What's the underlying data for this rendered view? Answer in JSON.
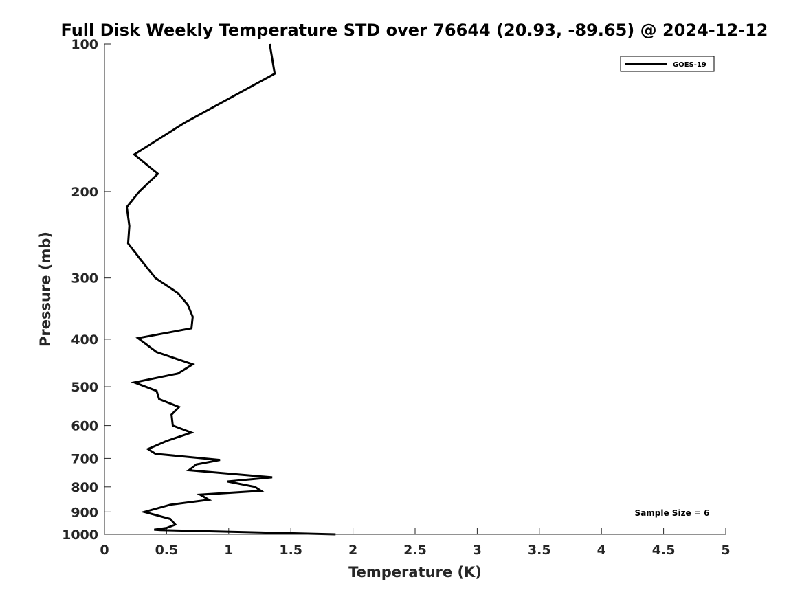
{
  "chart_data": {
    "type": "line",
    "title": "Full Disk Weekly Temperature STD over 76644 (20.93, -89.65) @ 2024-12-12",
    "xlabel": "Temperature (K)",
    "ylabel": "Pressure (mb)",
    "xlim": [
      0,
      5
    ],
    "ylim": [
      100,
      1000
    ],
    "yscale": "log",
    "y_reversed": true,
    "grid": false,
    "legend_position": "top-right",
    "x_ticks": [
      "0",
      "0.5",
      "1",
      "1.5",
      "2",
      "2.5",
      "3",
      "3.5",
      "4",
      "4.5",
      "5"
    ],
    "y_ticks": [
      "100",
      "200",
      "300",
      "400",
      "500",
      "600",
      "700",
      "800",
      "900",
      "1000"
    ],
    "annotation": "Sample Size = 6",
    "line_color": "#000000",
    "series": [
      {
        "name": "GOES-19",
        "points": [
          [
            1.33,
            100
          ],
          [
            1.37,
            115
          ],
          [
            0.64,
            145
          ],
          [
            0.24,
            168
          ],
          [
            0.43,
            184
          ],
          [
            0.28,
            200
          ],
          [
            0.18,
            215
          ],
          [
            0.2,
            235
          ],
          [
            0.19,
            255
          ],
          [
            0.29,
            275
          ],
          [
            0.41,
            300
          ],
          [
            0.59,
            322
          ],
          [
            0.67,
            340
          ],
          [
            0.71,
            360
          ],
          [
            0.7,
            380
          ],
          [
            0.27,
            398
          ],
          [
            0.42,
            425
          ],
          [
            0.71,
            450
          ],
          [
            0.59,
            470
          ],
          [
            0.24,
            490
          ],
          [
            0.42,
            510
          ],
          [
            0.44,
            530
          ],
          [
            0.6,
            550
          ],
          [
            0.54,
            570
          ],
          [
            0.55,
            600
          ],
          [
            0.7,
            620
          ],
          [
            0.5,
            645
          ],
          [
            0.35,
            670
          ],
          [
            0.41,
            685
          ],
          [
            0.93,
            705
          ],
          [
            0.74,
            720
          ],
          [
            0.68,
            740
          ],
          [
            1.35,
            765
          ],
          [
            0.99,
            780
          ],
          [
            1.21,
            800
          ],
          [
            1.26,
            815
          ],
          [
            0.77,
            830
          ],
          [
            0.84,
            850
          ],
          [
            0.53,
            870
          ],
          [
            0.32,
            900
          ],
          [
            0.53,
            930
          ],
          [
            0.57,
            955
          ],
          [
            0.5,
            970
          ],
          [
            0.4,
            978
          ],
          [
            0.45,
            980
          ],
          [
            1.86,
            1000
          ]
        ]
      }
    ]
  }
}
